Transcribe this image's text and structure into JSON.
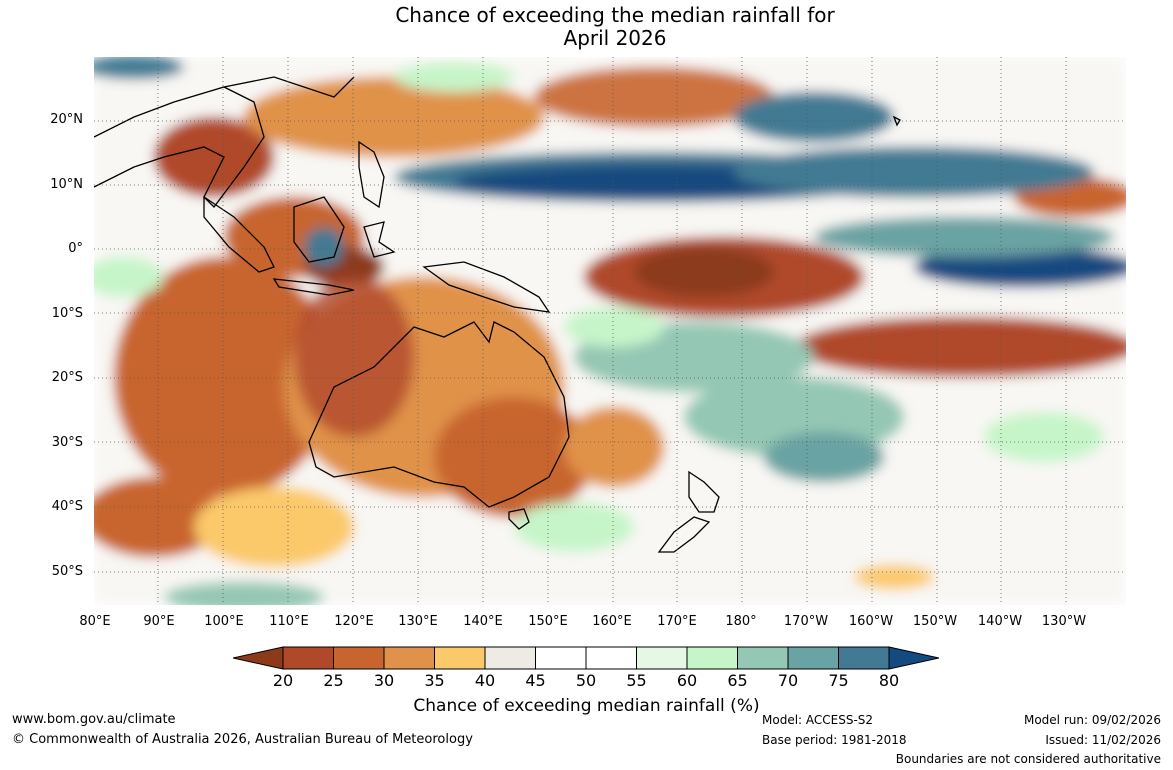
{
  "title_line1": "Chance of exceeding the median rainfall for",
  "title_line2": "April 2026",
  "latitude_labels": [
    "20°N",
    "10°N",
    "0°",
    "10°S",
    "20°S",
    "30°S",
    "40°S",
    "50°S"
  ],
  "longitude_labels": [
    "80°E",
    "90°E",
    "100°E",
    "110°E",
    "120°E",
    "130°E",
    "140°E",
    "150°E",
    "160°E",
    "170°E",
    "180°",
    "170°W",
    "160°W",
    "150°W",
    "140°W",
    "130°W"
  ],
  "colorbar": {
    "ticks": [
      "20",
      "25",
      "30",
      "35",
      "40",
      "45",
      "50",
      "55",
      "60",
      "65",
      "70",
      "75",
      "80"
    ],
    "colors": [
      "#8c3a1a",
      "#b0492a",
      "#c8652e",
      "#e0924a",
      "#fbc96a",
      "#eeebe5",
      "#ffffff",
      "#ffffff",
      "#e6f7e6",
      "#c6f5c9",
      "#94c7b4",
      "#6aa3a3",
      "#437a93",
      "#134a80"
    ],
    "title": "Chance of exceeding median rainfall (%)"
  },
  "footer": {
    "website": "www.bom.gov.au/climate",
    "copyright": "© Commonwealth of Australia 2026, Australian Bureau of Meteorology",
    "model": "Model: ACCESS-S2",
    "base_period": "Base period: 1981-2018",
    "model_run": "Model run: 09/02/2026",
    "issued": "Issued: 11/02/2026",
    "disclaimer": "Boundaries are not considered authoritative"
  }
}
